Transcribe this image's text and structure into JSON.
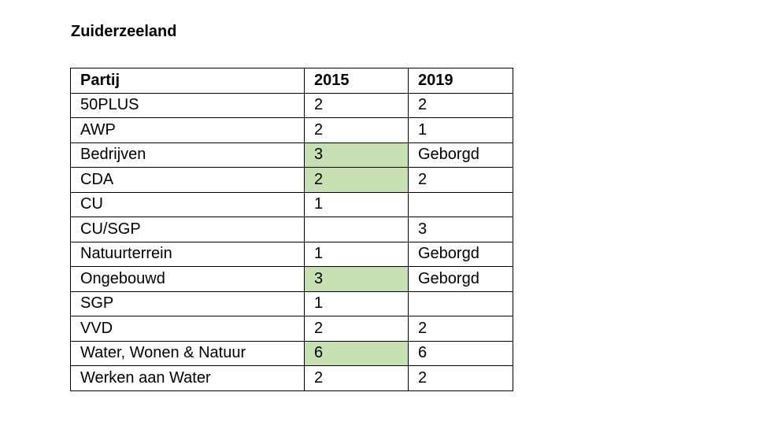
{
  "document": {
    "title": "Zuiderzeeland"
  },
  "colors": {
    "highlight": "#c6e0b4",
    "border": "#000000"
  },
  "table": {
    "headers": [
      "Partij",
      "2015",
      "2019"
    ],
    "rows": [
      {
        "party": "50PLUS",
        "y2015": "2",
        "y2019": "2",
        "highlight2015": false
      },
      {
        "party": "AWP",
        "y2015": "2",
        "y2019": "1",
        "highlight2015": false
      },
      {
        "party": "Bedrijven",
        "y2015": "3",
        "y2019": "Geborgd",
        "highlight2015": true
      },
      {
        "party": "CDA",
        "y2015": "2",
        "y2019": "2",
        "highlight2015": true
      },
      {
        "party": "CU",
        "y2015": "1",
        "y2019": "",
        "highlight2015": false
      },
      {
        "party": "CU/SGP",
        "y2015": "",
        "y2019": "3",
        "highlight2015": false
      },
      {
        "party": "Natuurterrein",
        "y2015": "1",
        "y2019": "Geborgd",
        "highlight2015": false
      },
      {
        "party": "Ongebouwd",
        "y2015": "3",
        "y2019": "Geborgd",
        "highlight2015": true
      },
      {
        "party": "SGP",
        "y2015": "1",
        "y2019": "",
        "highlight2015": false
      },
      {
        "party": "VVD",
        "y2015": "2",
        "y2019": "2",
        "highlight2015": false
      },
      {
        "party": "Water, Wonen & Natuur",
        "y2015": "6",
        "y2019": "6",
        "highlight2015": true
      },
      {
        "party": "Werken aan Water",
        "y2015": "2",
        "y2019": "2",
        "highlight2015": false
      }
    ]
  }
}
